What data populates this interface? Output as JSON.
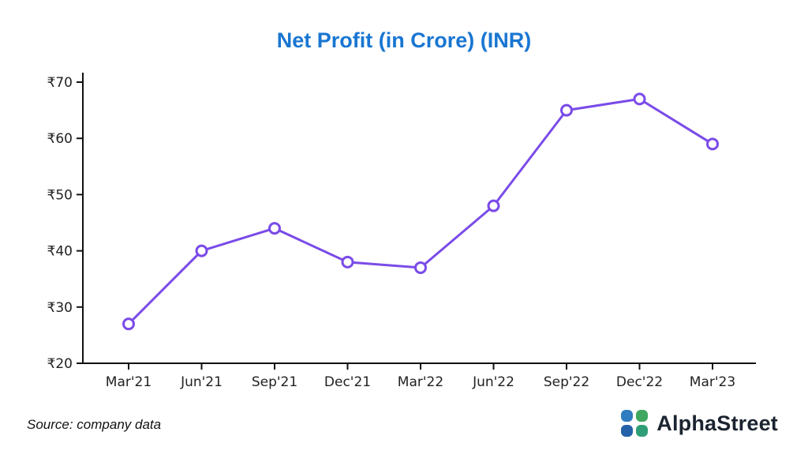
{
  "chart_data": {
    "type": "line",
    "title": "Net Profit (in Crore) (INR)",
    "title_color": "#1976d2",
    "categories": [
      "Mar'21",
      "Jun'21",
      "Sep'21",
      "Dec'21",
      "Mar'22",
      "Jun'22",
      "Sep'22",
      "Dec'22",
      "Mar'23"
    ],
    "values": [
      27,
      40,
      44,
      38,
      37,
      48,
      65,
      67,
      59
    ],
    "currency_prefix": "₹",
    "ylim": [
      20,
      70
    ],
    "y_tick_step": 10,
    "y_tick_labels": [
      "₹20",
      "₹30",
      "₹40",
      "₹50",
      "₹60",
      "₹70"
    ],
    "xlabel": "",
    "ylabel": "",
    "grid": false,
    "legend": false,
    "line_color": "#7a4be8",
    "marker_fill": "#ffffff",
    "axis_color": "#111111"
  },
  "footer": {
    "source": "Source: company data",
    "brand": "AlphaStreet",
    "logo_colors": {
      "tl": "#2f7cc0",
      "tr": "#3fa75f",
      "bl": "#2361a8",
      "br": "#2f9e77"
    }
  }
}
